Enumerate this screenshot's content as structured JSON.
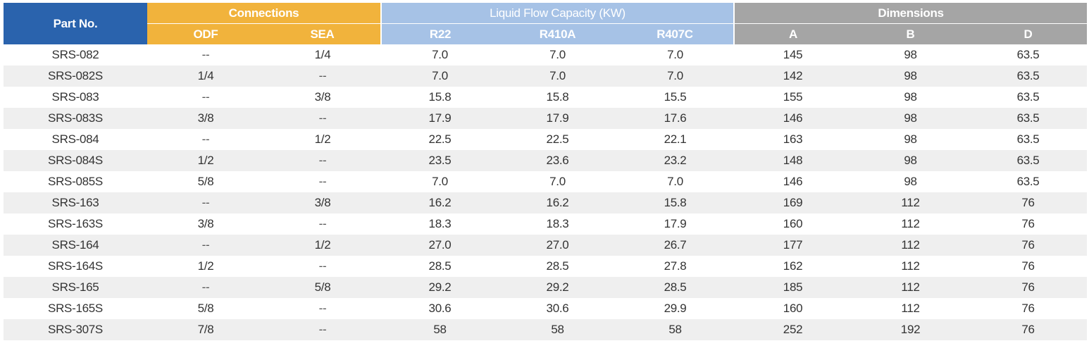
{
  "table": {
    "headers": {
      "part_no": "Part No.",
      "connections": "Connections",
      "liquid_flow": "Liquid Flow Capacity (KW)",
      "dimensions": "Dimensions",
      "sub": [
        "ODF",
        "SEA",
        "R22",
        "R410A",
        "R407C",
        "A",
        "B",
        "D"
      ]
    },
    "rows": [
      [
        "SRS-082",
        "--",
        "1/4",
        "7.0",
        "7.0",
        "7.0",
        "145",
        "98",
        "63.5"
      ],
      [
        "SRS-082S",
        "1/4",
        "--",
        "7.0",
        "7.0",
        "7.0",
        "142",
        "98",
        "63.5"
      ],
      [
        "SRS-083",
        "--",
        "3/8",
        "15.8",
        "15.8",
        "15.5",
        "155",
        "98",
        "63.5"
      ],
      [
        "SRS-083S",
        "3/8",
        "--",
        "17.9",
        "17.9",
        "17.6",
        "146",
        "98",
        "63.5"
      ],
      [
        "SRS-084",
        "--",
        "1/2",
        "22.5",
        "22.5",
        "22.1",
        "163",
        "98",
        "63.5"
      ],
      [
        "SRS-084S",
        "1/2",
        "--",
        "23.5",
        "23.6",
        "23.2",
        "148",
        "98",
        "63.5"
      ],
      [
        "SRS-085S",
        "5/8",
        "--",
        "7.0",
        "7.0",
        "7.0",
        "146",
        "98",
        "63.5"
      ],
      [
        "SRS-163",
        "--",
        "3/8",
        "16.2",
        "16.2",
        "15.8",
        "169",
        "112",
        "76"
      ],
      [
        "SRS-163S",
        "3/8",
        "--",
        "18.3",
        "18.3",
        "17.9",
        "160",
        "112",
        "76"
      ],
      [
        "SRS-164",
        "--",
        "1/2",
        "27.0",
        "27.0",
        "26.7",
        "177",
        "112",
        "76"
      ],
      [
        "SRS-164S",
        "1/2",
        "--",
        "28.5",
        "28.5",
        "27.8",
        "162",
        "112",
        "76"
      ],
      [
        "SRS-165",
        "--",
        "5/8",
        "29.2",
        "29.2",
        "28.5",
        "185",
        "112",
        "76"
      ],
      [
        "SRS-165S",
        "5/8",
        "--",
        "30.6",
        "30.6",
        "29.9",
        "160",
        "112",
        "76"
      ],
      [
        "SRS-307S",
        "7/8",
        "--",
        "58",
        "58",
        "58",
        "252",
        "192",
        "76"
      ]
    ]
  },
  "colors": {
    "part_no_header": "#2a63ad",
    "connections_header": "#f1b33c",
    "liquid_flow_header": "#a6c2e6",
    "dimensions_header": "#a5a5a5",
    "alt_row": "#efefef"
  }
}
